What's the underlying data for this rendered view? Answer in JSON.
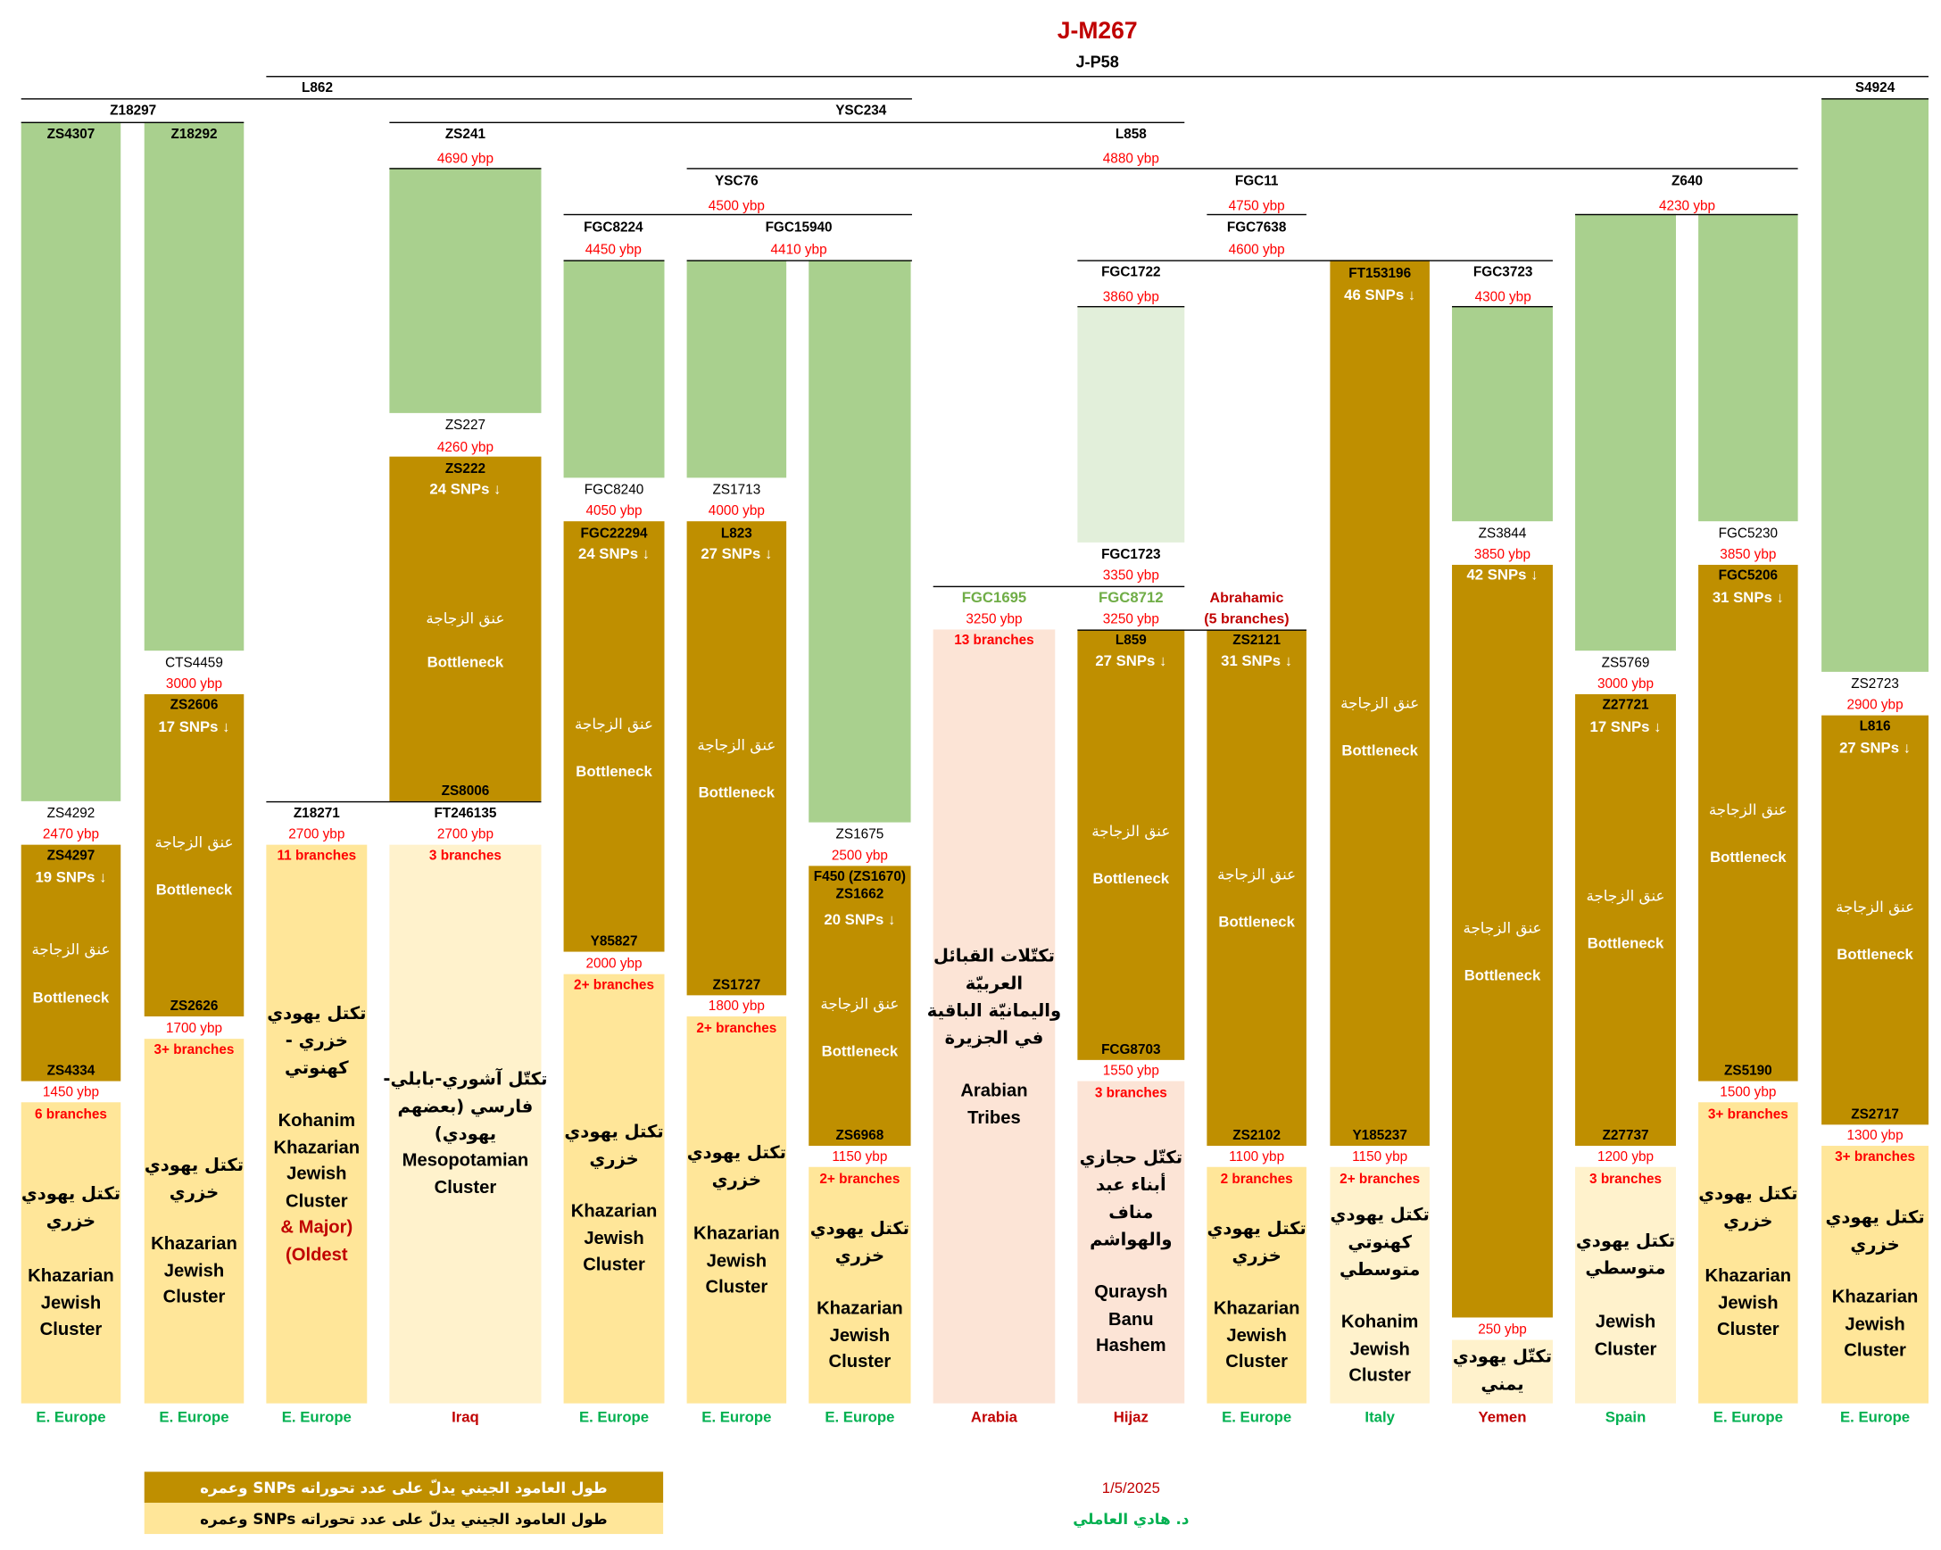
{
  "header": {
    "title": "J-M267",
    "subtitle": "J-P58"
  },
  "colors": {
    "green": "#a9d08e",
    "palegreen": "#e2efda",
    "gold": "#bf8f00",
    "yellow": "#ffe699",
    "light": "#fff2cc",
    "pink": "#fce4d6",
    "region_green": "#00b050",
    "region_red": "#c00000"
  },
  "tree_nodes": [
    {
      "name": "L862",
      "age": ""
    },
    {
      "name": "S4924",
      "age": ""
    },
    {
      "name": "Z18297",
      "age": ""
    },
    {
      "name": "YSC234",
      "age": ""
    },
    {
      "name": "ZS241",
      "age": "4690 ybp"
    },
    {
      "name": "L858",
      "age": "4880 ybp"
    },
    {
      "name": "YSC76",
      "age": "4500 ybp"
    },
    {
      "name": "FGC11",
      "age": "4750 ybp"
    },
    {
      "name": "Z640",
      "age": "4230 ybp"
    },
    {
      "name": "FGC8224",
      "age": "4450 ybp"
    },
    {
      "name": "FGC15940",
      "age": "4410 ybp"
    },
    {
      "name": "FGC7638",
      "age": "4600 ybp"
    },
    {
      "name": "FGC1722",
      "age": "3860 ybp"
    },
    {
      "name": "FGC3723",
      "age": "4300 ybp"
    },
    {
      "name": "FGC1695",
      "age": "3250 ybp"
    },
    {
      "name": "FGC8712",
      "age": "3250 ybp"
    },
    {
      "name": "Abrahamic",
      "age": "(5 branches)"
    }
  ],
  "columns": [
    {
      "top": "ZS4307",
      "mid": "ZS4292",
      "mid_age": "2470 ybp",
      "snp_top": "ZS4297",
      "snps": "19 SNPs ↓",
      "bottleneck_ar": "عنق الزجاجة",
      "bottleneck_en": "Bottleneck",
      "snp_bottom": "ZS4334",
      "end_age": "1450 ybp",
      "branches": "6 branches",
      "cluster_ar": "تكتل يهودي\nخزري",
      "cluster_en": "Khazarian\nJewish\nCluster",
      "region": "E. Europe",
      "region_color": "#00b050"
    },
    {
      "top": "Z18292",
      "mid": "CTS4459",
      "mid_age": "3000 ybp",
      "snp_top": "ZS2606",
      "snps": "17 SNPs ↓",
      "bottleneck_ar": "عنق الزجاجة",
      "bottleneck_en": "Bottleneck",
      "snp_bottom": "ZS2626",
      "end_age": "1700 ybp",
      "branches": "3+ branches",
      "cluster_ar": "تكتل يهودي\nخزري",
      "cluster_en": "Khazarian\nJewish\nCluster",
      "region": "E. Europe",
      "region_color": "#00b050"
    },
    {
      "mid": "Z18271",
      "mid_age": "2700 ybp",
      "branches": "11 branches",
      "cluster_ar": "تكتل يهودي\nخزري -\nكهنوتي",
      "cluster_en": "Kohanim\nKhazarian\nJewish\nCluster",
      "cluster_note": "& Major)\n(Oldest",
      "region": "E. Europe",
      "region_color": "#00b050"
    },
    {
      "mid": "ZS227",
      "mid_age": "4260 ybp",
      "snp_top": "ZS222",
      "snps": "24 SNPs ↓",
      "bottleneck_ar": "عنق الزجاجة",
      "bottleneck_en": "Bottleneck",
      "snp_bottom": "ZS8006",
      "sub": "FT246135",
      "sub_age": "2700 ybp",
      "branches": "3 branches",
      "cluster_ar": "تكتّل آشوري-بابلي-\nفارسي (بعضهم\nيهودي)",
      "cluster_en": "Mesopotamian\nCluster",
      "region": "Iraq",
      "region_color": "#c00000"
    },
    {
      "mid": "FGC8240",
      "mid_age": "4050 ybp",
      "snp_top": "FGC22294",
      "snps": "24 SNPs ↓",
      "bottleneck_ar": "عنق الزجاجة",
      "bottleneck_en": "Bottleneck",
      "snp_bottom": "Y85827",
      "end_age": "2000 ybp",
      "branches": "2+ branches",
      "cluster_ar": "تكتل يهودي\nخزري",
      "cluster_en": "Khazarian\nJewish\nCluster",
      "region": "E. Europe",
      "region_color": "#00b050"
    },
    {
      "mid": "ZS1713",
      "mid_age": "4000 ybp",
      "snp_top": "L823",
      "snps": "27 SNPs ↓",
      "bottleneck_ar": "عنق الزجاجة",
      "bottleneck_en": "Bottleneck",
      "snp_bottom": "ZS1727",
      "end_age": "1800 ybp",
      "branches": "2+ branches",
      "cluster_ar": "تكتل يهودي\nخزري",
      "cluster_en": "Khazarian\nJewish\nCluster",
      "region": "E. Europe",
      "region_color": "#00b050"
    },
    {
      "mid": "ZS1675",
      "mid_age": "2500 ybp",
      "snp_top": "F450 (ZS1670)\nZS1662",
      "snps": "20 SNPs ↓",
      "bottleneck_ar": "عنق الزجاجة",
      "bottleneck_en": "Bottleneck",
      "snp_bottom": "ZS6968",
      "end_age": "1150 ybp",
      "branches": "2+ branches",
      "cluster_ar": "تكتل يهودي\nخزري",
      "cluster_en": "Khazarian\nJewish\nCluster",
      "region": "E. Europe",
      "region_color": "#00b050"
    },
    {
      "branches": "13 branches",
      "cluster_ar": "تكتّلات القبائل\nالعربيّة\nواليمانيّة الباقية\nفي الجزيرة",
      "cluster_en": "Arabian\nTribes",
      "region": "Arabia",
      "region_color": "#c00000"
    },
    {
      "mid": "FGC1723",
      "mid_age": "3350 ybp",
      "snp_top": "L859",
      "snps": "27 SNPs ↓",
      "bottleneck_ar": "عنق الزجاجة",
      "bottleneck_en": "Bottleneck",
      "snp_bottom": "FCG8703",
      "end_age": "1550 ybp",
      "branches": "3 branches",
      "cluster_ar": "تكتّل حجازي\nأبناء عبد\nمناف\nوالهواشم",
      "cluster_en": "Quraysh\nBanu\nHashem",
      "region": "Hijaz",
      "region_color": "#c00000"
    },
    {
      "snp_top": "ZS2121",
      "snps": "31 SNPs ↓",
      "bottleneck_ar": "عنق الزجاجة",
      "bottleneck_en": "Bottleneck",
      "snp_bottom": "ZS2102",
      "end_age": "1100 ybp",
      "branches": "2 branches",
      "cluster_ar": "تكتل يهودي\nخزري",
      "cluster_en": "Khazarian\nJewish\nCluster",
      "region": "E. Europe",
      "region_color": "#00b050"
    },
    {
      "snp_top": "FT153196",
      "snps": "46 SNPs ↓",
      "bottleneck_ar": "عنق الزجاجة",
      "bottleneck_en": "Bottleneck",
      "snp_bottom": "Y185237",
      "end_age": "1150 ybp",
      "branches": "2+ branches",
      "cluster_ar": "تكتل يهودي\nكهنوتي\nمتوسطي",
      "cluster_en": "Kohanim\nJewish\nCluster",
      "region": "Italy",
      "region_color": "#00b050"
    },
    {
      "mid": "ZS3844",
      "mid_age": "3850 ybp",
      "snps": "42 SNPs ↓",
      "bottleneck_ar": "عنق الزجاجة",
      "bottleneck_en": "Bottleneck",
      "end_age": "250 ybp",
      "cluster_ar": "تكتّل يهودي\nيمني",
      "region": "Yemen",
      "region_color": "#c00000"
    },
    {
      "mid": "ZS5769",
      "mid_age": "3000 ybp",
      "snp_top": "Z27721",
      "snps": "17 SNPs ↓",
      "bottleneck_ar": "عنق الزجاجة",
      "bottleneck_en": "Bottleneck",
      "snp_bottom": "Z27737",
      "end_age": "1200 ybp",
      "branches": "3 branches",
      "cluster_ar": "تكتل يهودي\nمتوسطي",
      "cluster_en": "Jewish\nCluster",
      "region": "Spain",
      "region_color": "#00b050"
    },
    {
      "mid": "FGC5230",
      "mid_age": "3850 ybp",
      "snp_top": "FGC5206",
      "snps": "31 SNPs ↓",
      "bottleneck_ar": "عنق الزجاجة",
      "bottleneck_en": "Bottleneck",
      "snp_bottom": "ZS5190",
      "end_age": "1500 ybp",
      "branches": "3+ branches",
      "cluster_ar": "تكتل يهودي\nخزري",
      "cluster_en": "Khazarian\nJewish\nCluster",
      "region": "E. Europe",
      "region_color": "#00b050"
    },
    {
      "mid": "ZS2723",
      "mid_age": "2900 ybp",
      "snp_top": "L816",
      "snps": "27 SNPs ↓",
      "bottleneck_ar": "عنق الزجاجة",
      "bottleneck_en": "Bottleneck",
      "snp_bottom": "ZS2717",
      "end_age": "1300 ybp",
      "branches": "3+ branches",
      "cluster_ar": "تكتل يهودي\nخزري",
      "cluster_en": "Khazarian\nJewish\nCluster",
      "region": "E. Europe",
      "region_color": "#00b050"
    }
  ],
  "legend": {
    "dark_label": "طول العامود الجيني يدلّ على عدد تحوراته SNPs وعمره",
    "light_label": "طول العامود الجيني يدلّ على عدد تحوراته SNPs وعمره"
  },
  "footer": {
    "date": "1/5/2025",
    "author": "د. هادي العاملي"
  }
}
